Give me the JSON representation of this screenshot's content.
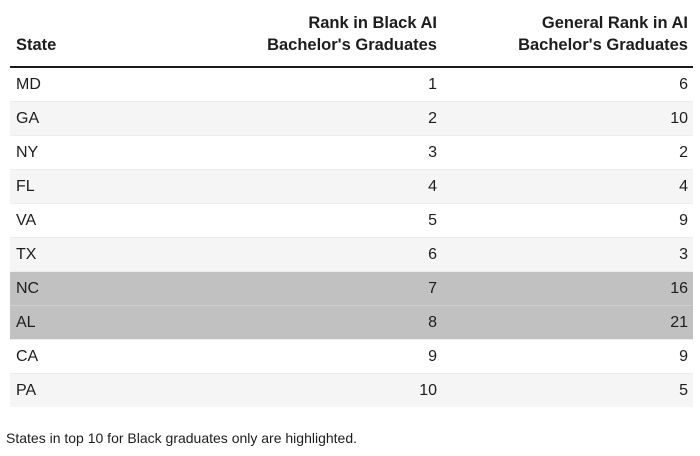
{
  "chart_data": {
    "type": "table",
    "title": "",
    "columns": [
      {
        "label": "State"
      },
      {
        "label": "Rank in Black AI\nBachelor's Graduates"
      },
      {
        "label": "General Rank in AI\nBachelor's Graduates"
      }
    ],
    "rows": [
      {
        "state": "MD",
        "black_ai_rank": "1",
        "general_rank": "6",
        "highlighted": false
      },
      {
        "state": "GA",
        "black_ai_rank": "2",
        "general_rank": "10",
        "highlighted": false
      },
      {
        "state": "NY",
        "black_ai_rank": "3",
        "general_rank": "2",
        "highlighted": false
      },
      {
        "state": "FL",
        "black_ai_rank": "4",
        "general_rank": "4",
        "highlighted": false
      },
      {
        "state": "VA",
        "black_ai_rank": "5",
        "general_rank": "9",
        "highlighted": false
      },
      {
        "state": "TX",
        "black_ai_rank": "6",
        "general_rank": "3",
        "highlighted": false
      },
      {
        "state": "NC",
        "black_ai_rank": "7",
        "general_rank": "16",
        "highlighted": true
      },
      {
        "state": "AL",
        "black_ai_rank": "8",
        "general_rank": "21",
        "highlighted": true
      },
      {
        "state": "CA",
        "black_ai_rank": "9",
        "general_rank": "9",
        "highlighted": false
      },
      {
        "state": "PA",
        "black_ai_rank": "10",
        "general_rank": "5",
        "highlighted": false
      }
    ],
    "highlighted_states": [
      "NC",
      "AL"
    ],
    "footnote": "States in top 10 for Black graduates only are highlighted.",
    "colors": {
      "highlight_row": "#c1c1c1",
      "zebra_row": "#f5f5f6",
      "plain_row": "#ffffff",
      "header_rule": "#1a1a1a",
      "text": "#1d1d1f"
    },
    "layout_hints": {
      "zebra_striping": true,
      "header_rule_thickness_px": 2
    }
  }
}
